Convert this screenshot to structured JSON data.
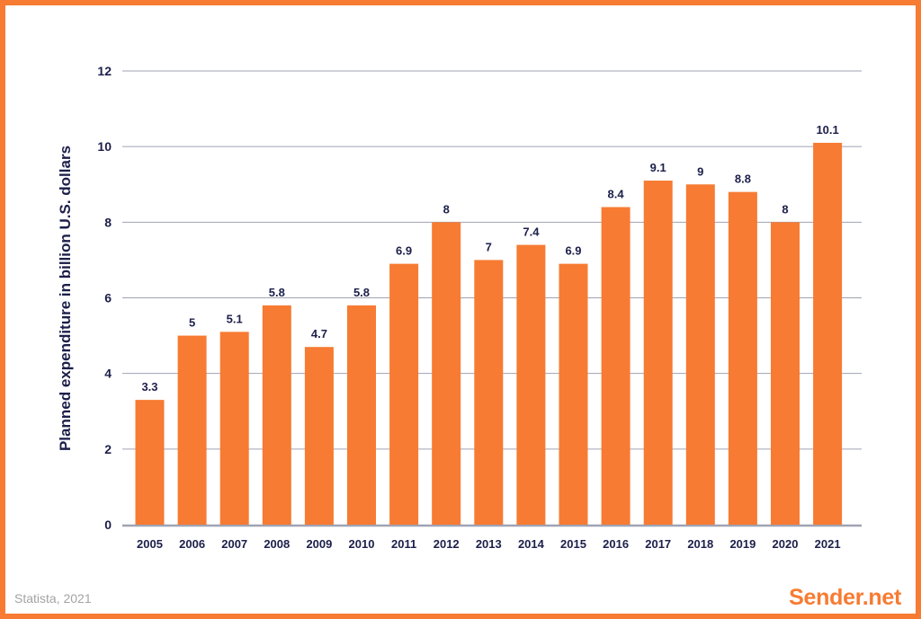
{
  "chart_data": {
    "type": "bar",
    "categories": [
      "2005",
      "2006",
      "2007",
      "2008",
      "2009",
      "2010",
      "2011",
      "2012",
      "2013",
      "2014",
      "2015",
      "2016",
      "2017",
      "2018",
      "2019",
      "2020",
      "2021"
    ],
    "values": [
      3.3,
      5,
      5.1,
      5.8,
      4.7,
      5.8,
      6.9,
      8,
      7,
      7.4,
      6.9,
      8.4,
      9.1,
      9,
      8.8,
      8,
      10.1
    ],
    "data_labels": [
      "3.3",
      "5",
      "5.1",
      "5.8",
      "4.7",
      "5.8",
      "6.9",
      "8",
      "7",
      "7.4",
      "6.9",
      "8.4",
      "9.1",
      "9",
      "8.8",
      "8",
      "10.1"
    ],
    "ylabel": "Planned expenditure in billion U.S. dollars",
    "xlabel": "",
    "ylim": [
      0,
      12
    ],
    "yticks": [
      0,
      2,
      4,
      6,
      8,
      10,
      12
    ],
    "grid": true,
    "legend": "none",
    "bar_color": "#F77B32",
    "grid_color": "#9fa3b3",
    "text_color": "#1c1f4a"
  },
  "footer": {
    "source": "Statista, 2021",
    "brand": "Sender.net"
  },
  "colors": {
    "frame": "#F77B32",
    "source_text": "#a3a3a3"
  }
}
